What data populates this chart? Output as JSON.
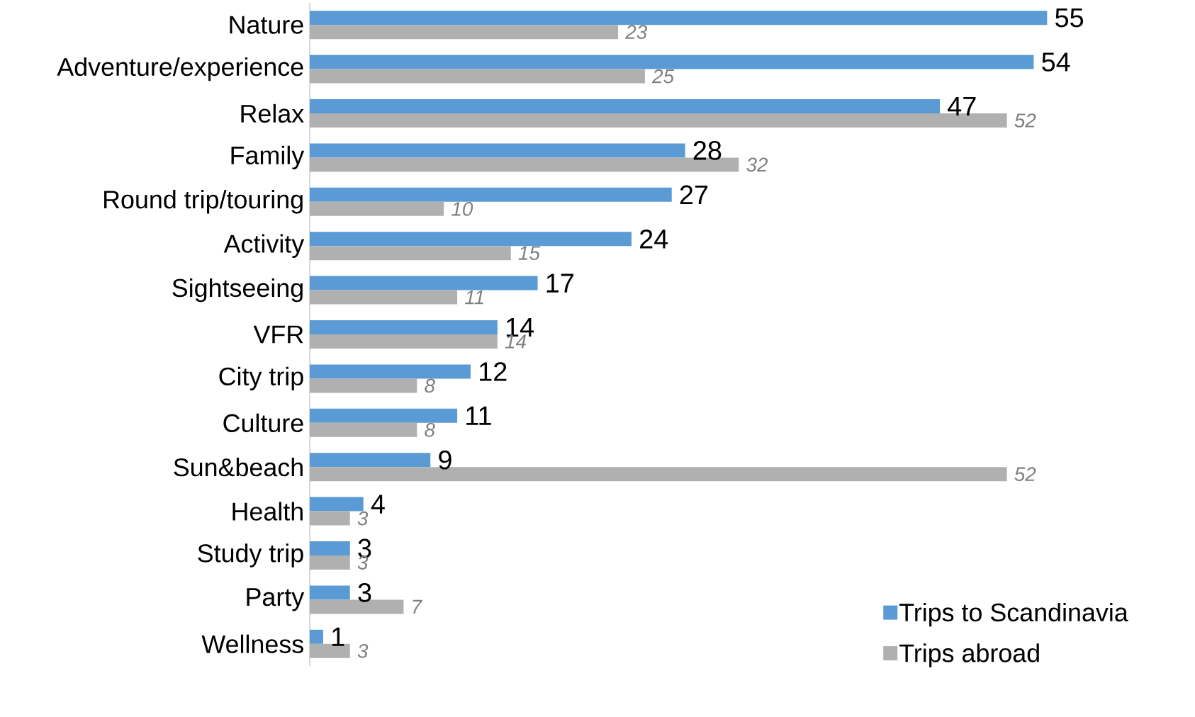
{
  "chart_data": {
    "type": "bar",
    "orientation": "horizontal",
    "categories": [
      "Nature",
      "Adventure/experience",
      "Relax",
      "Family",
      "Round trip/touring",
      "Activity",
      "Sightseeing",
      "VFR",
      "City trip",
      "Culture",
      "Sun&beach",
      "Health",
      "Study trip",
      "Party",
      "Wellness"
    ],
    "series": [
      {
        "name": "Trips to Scandinavia",
        "color": "#5b9bd5",
        "values": [
          55,
          54,
          47,
          28,
          27,
          24,
          17,
          14,
          12,
          11,
          9,
          4,
          3,
          3,
          1
        ]
      },
      {
        "name": "Trips abroad",
        "color": "#b0b0b0",
        "values": [
          23,
          25,
          52,
          32,
          10,
          15,
          11,
          14,
          8,
          8,
          52,
          3,
          3,
          7,
          3
        ]
      }
    ],
    "data_labels": true,
    "legend": "bottom right"
  }
}
